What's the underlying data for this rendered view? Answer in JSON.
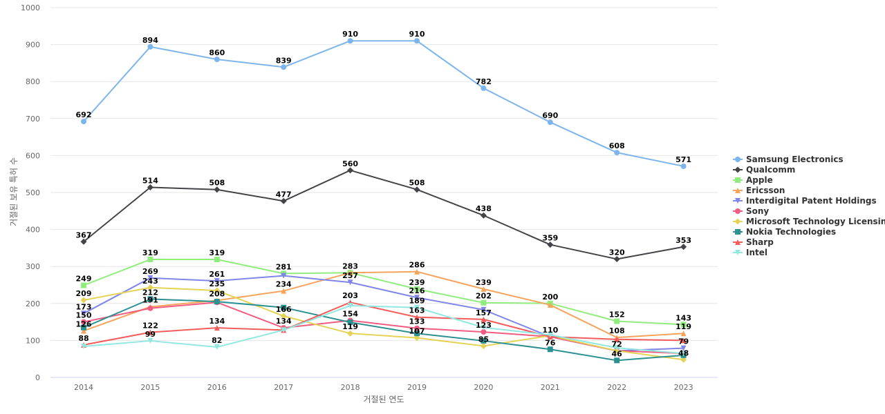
{
  "chart_data": {
    "type": "line",
    "xlabel": "거절된 연도",
    "ylabel": "거절된 보유 특허 수",
    "ylim": [
      0,
      1000
    ],
    "yticks": [
      0,
      100,
      200,
      300,
      400,
      500,
      600,
      700,
      800,
      900,
      1000
    ],
    "x": [
      "2014",
      "2015",
      "2016",
      "2017",
      "2018",
      "2019",
      "2020",
      "2021",
      "2022",
      "2023"
    ],
    "grid": true,
    "legend_position": "right",
    "series": [
      {
        "name": "Samsung Electronics",
        "color": "#7cb5ec",
        "marker": "circle",
        "values": [
          692,
          894,
          860,
          839,
          910,
          910,
          782,
          690,
          608,
          571
        ]
      },
      {
        "name": "Qualcomm",
        "color": "#434348",
        "marker": "diamond",
        "values": [
          367,
          514,
          508,
          477,
          560,
          508,
          438,
          359,
          320,
          353
        ]
      },
      {
        "name": "Apple",
        "color": "#90ed7d",
        "marker": "square",
        "values": [
          249,
          319,
          319,
          281,
          283,
          239,
          202,
          200,
          152,
          143
        ]
      },
      {
        "name": "Ericsson",
        "color": "#f7a35c",
        "marker": "triangle",
        "values": [
          126,
          191,
          208,
          234,
          283,
          286,
          239,
          196,
          108,
          119
        ]
      },
      {
        "name": "Interdigital Patent Holdings",
        "color": "#8085e9",
        "marker": "triangle-down",
        "values": [
          173,
          269,
          261,
          275,
          257,
          216,
          183,
          110,
          72,
          79
        ]
      },
      {
        "name": "Sony",
        "color": "#f15c80",
        "marker": "circle",
        "values": [
          150,
          187,
          203,
          134,
          154,
          133,
          123,
          110,
          72,
          65
        ]
      },
      {
        "name": "Microsoft Technology Licensing",
        "color": "#e4d354",
        "marker": "diamond",
        "values": [
          209,
          243,
          235,
          166,
          119,
          107,
          85,
          113,
          72,
          48
        ]
      },
      {
        "name": "Nokia Technologies",
        "color": "#2b908f",
        "marker": "square",
        "values": [
          135,
          212,
          205,
          189,
          149,
          119,
          99,
          76,
          46,
          60
        ]
      },
      {
        "name": "Sharp",
        "color": "#f45b5b",
        "marker": "triangle",
        "values": [
          88,
          122,
          134,
          128,
          203,
          163,
          157,
          110,
          103,
          100
        ]
      },
      {
        "name": "Intel",
        "color": "#91e8e1",
        "marker": "triangle-down",
        "values": [
          84,
          99,
          82,
          128,
          194,
          189,
          135,
          115,
          80,
          65
        ]
      }
    ],
    "data_labels": [
      {
        "series": "Samsung Electronics",
        "text": [
          "692",
          "894",
          "860",
          "839",
          "910",
          "910",
          "782",
          "690",
          "608",
          "571"
        ]
      },
      {
        "series": "Qualcomm",
        "text": [
          "367",
          "514",
          "508",
          "477",
          "560",
          "508",
          "438",
          "359",
          "320",
          "353"
        ]
      },
      {
        "series": "Apple",
        "text": [
          "249",
          "319",
          "319",
          "281",
          "283",
          "239",
          "202",
          "200",
          "152",
          "143"
        ]
      },
      {
        "series": "Ericsson",
        "text": [
          "126",
          "191",
          "208",
          "234",
          "",
          "286",
          "239",
          "",
          "108",
          "119"
        ]
      },
      {
        "series": "Interdigital Patent Holdings",
        "text": [
          "173",
          "269",
          "261",
          "",
          "257",
          "216",
          "",
          "",
          "",
          "79"
        ]
      },
      {
        "series": "Sony",
        "text": [
          "150",
          "",
          "",
          "134",
          "154",
          "133",
          "123",
          "110",
          "72",
          ""
        ]
      },
      {
        "series": "Microsoft Technology Licensing",
        "text": [
          "209",
          "243",
          "235",
          "166",
          "119",
          "107",
          "85",
          "",
          "",
          "48"
        ]
      },
      {
        "series": "Nokia Technologies",
        "text": [
          "",
          "212",
          "",
          "",
          "",
          "",
          "",
          "76",
          "46",
          ""
        ]
      },
      {
        "series": "Sharp",
        "text": [
          "88",
          "122",
          "134",
          "",
          "203",
          "163",
          "157",
          "",
          "",
          ""
        ]
      },
      {
        "series": "Intel",
        "text": [
          "",
          "99",
          "82",
          "",
          "",
          "189",
          "",
          "",
          "",
          ""
        ]
      }
    ]
  }
}
